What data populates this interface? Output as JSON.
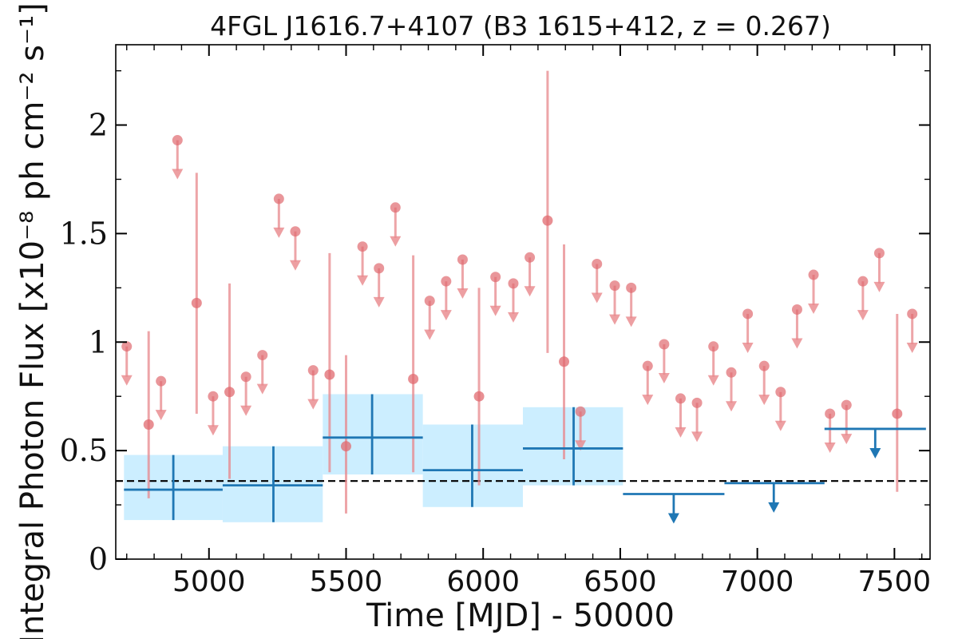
{
  "chart_data": {
    "type": "scatter",
    "title": "4FGL J1616.7+4107 (B3 1615+412, z = 0.267)",
    "xlabel": "Time [MJD] - 50000",
    "ylabel": "Integral Photon Flux [x10⁻⁸ ph cm⁻² s⁻¹]",
    "xlim": [
      4660,
      7630
    ],
    "ylim": [
      0,
      2.37
    ],
    "x_ticks": [
      5000,
      5500,
      6000,
      6500,
      7000,
      7500
    ],
    "x_tick_labels": [
      "5000",
      "5500",
      "6000",
      "6500",
      "7000",
      "7500"
    ],
    "y_ticks": [
      0,
      0.5,
      1,
      1.5,
      2
    ],
    "y_tick_labels": [
      "0",
      "0.5",
      "1",
      "1.5",
      "2"
    ],
    "reference_line": {
      "y": 0.36,
      "style": "dashed",
      "color": "#000000"
    },
    "colors": {
      "short_bins": "#e8878b",
      "short_bins_point": "#e06a6f",
      "long_bins": "#1f77b4",
      "long_bins_band": "#cceeff"
    },
    "series": [
      {
        "style": "short-bin detections (red circles with error bars)",
        "points": [
          {
            "x": 4780,
            "y": 0.62,
            "ylo": 0.28,
            "yhi": 1.05
          },
          {
            "x": 4955,
            "y": 1.18,
            "ylo": 0.67,
            "yhi": 1.78
          },
          {
            "x": 5075,
            "y": 0.77,
            "ylo": 0.37,
            "yhi": 1.27
          },
          {
            "x": 5440,
            "y": 0.85,
            "ylo": 0.4,
            "yhi": 1.41
          },
          {
            "x": 5500,
            "y": 0.52,
            "ylo": 0.21,
            "yhi": 0.94
          },
          {
            "x": 5745,
            "y": 0.83,
            "ylo": 0.4,
            "yhi": 1.4
          },
          {
            "x": 5985,
            "y": 0.75,
            "ylo": 0.34,
            "yhi": 1.25
          },
          {
            "x": 6235,
            "y": 1.56,
            "ylo": 0.95,
            "yhi": 2.25
          },
          {
            "x": 6295,
            "y": 0.91,
            "ylo": 0.46,
            "yhi": 1.45
          },
          {
            "x": 7510,
            "y": 0.67,
            "ylo": 0.31,
            "yhi": 1.13
          }
        ]
      },
      {
        "style": "short-bin upper limits (red arrows)",
        "points": [
          {
            "x": 4700,
            "y": 0.98
          },
          {
            "x": 4825,
            "y": 0.82
          },
          {
            "x": 4885,
            "y": 1.93
          },
          {
            "x": 5015,
            "y": 0.75
          },
          {
            "x": 5135,
            "y": 0.84
          },
          {
            "x": 5195,
            "y": 0.94
          },
          {
            "x": 5255,
            "y": 1.66
          },
          {
            "x": 5315,
            "y": 1.51
          },
          {
            "x": 5380,
            "y": 0.87
          },
          {
            "x": 5560,
            "y": 1.44
          },
          {
            "x": 5620,
            "y": 1.34
          },
          {
            "x": 5680,
            "y": 1.62
          },
          {
            "x": 5805,
            "y": 1.19
          },
          {
            "x": 5865,
            "y": 1.28
          },
          {
            "x": 5925,
            "y": 1.38
          },
          {
            "x": 6045,
            "y": 1.3
          },
          {
            "x": 6110,
            "y": 1.27
          },
          {
            "x": 6170,
            "y": 1.39
          },
          {
            "x": 6355,
            "y": 0.68
          },
          {
            "x": 6415,
            "y": 1.36
          },
          {
            "x": 6480,
            "y": 1.26
          },
          {
            "x": 6540,
            "y": 1.25
          },
          {
            "x": 6600,
            "y": 0.89
          },
          {
            "x": 6660,
            "y": 0.99
          },
          {
            "x": 6720,
            "y": 0.74
          },
          {
            "x": 6780,
            "y": 0.72
          },
          {
            "x": 6840,
            "y": 0.98
          },
          {
            "x": 6905,
            "y": 0.86
          },
          {
            "x": 6965,
            "y": 1.13
          },
          {
            "x": 7025,
            "y": 0.89
          },
          {
            "x": 7085,
            "y": 0.77
          },
          {
            "x": 7145,
            "y": 1.15
          },
          {
            "x": 7205,
            "y": 1.31
          },
          {
            "x": 7265,
            "y": 0.67
          },
          {
            "x": 7325,
            "y": 0.71
          },
          {
            "x": 7385,
            "y": 1.28
          },
          {
            "x": 7445,
            "y": 1.41
          },
          {
            "x": 7565,
            "y": 1.13
          }
        ]
      },
      {
        "style": "long-bin detections (blue crosses with shaded band)",
        "points": [
          {
            "x0": 4690,
            "x1": 5050,
            "x": 4870,
            "y": 0.32,
            "ylo": 0.18,
            "yhi": 0.48
          },
          {
            "x0": 5050,
            "x1": 5415,
            "x": 5235,
            "y": 0.34,
            "ylo": 0.17,
            "yhi": 0.52
          },
          {
            "x0": 5415,
            "x1": 5780,
            "x": 5595,
            "y": 0.56,
            "ylo": 0.39,
            "yhi": 0.76
          },
          {
            "x0": 5780,
            "x1": 6145,
            "x": 5960,
            "y": 0.41,
            "ylo": 0.24,
            "yhi": 0.62
          },
          {
            "x0": 6145,
            "x1": 6510,
            "x": 6330,
            "y": 0.51,
            "ylo": 0.34,
            "yhi": 0.7
          }
        ]
      },
      {
        "style": "long-bin upper limits (blue arrows)",
        "points": [
          {
            "x0": 6510,
            "x1": 6880,
            "x": 6695,
            "y": 0.3
          },
          {
            "x0": 6880,
            "x1": 7245,
            "x": 7060,
            "y": 0.35
          },
          {
            "x0": 7245,
            "x1": 7615,
            "x": 7430,
            "y": 0.6
          }
        ]
      }
    ]
  }
}
